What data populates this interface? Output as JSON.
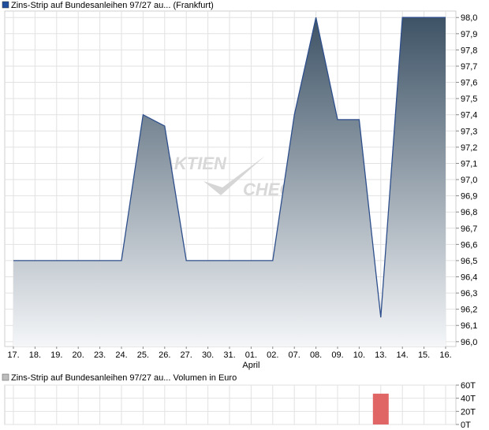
{
  "colors": {
    "price_line": "#2e4f8c",
    "fill_top": "#3e5366",
    "fill_bottom": "#f4f6f8",
    "volume_bar": "#e06666",
    "grid": "#e2e2e2",
    "legend_price_square": "#1f4e9c",
    "legend_volume_square": "#bdbdbd"
  },
  "watermark": {
    "text_left": "AKTIEN",
    "text_right": "CHECK"
  },
  "chart_data": [
    {
      "type": "area",
      "legend": "Zins-Strip auf Bundesanleihen 97/27 au... (Frankfurt)",
      "categories": [
        "17.",
        "18.",
        "19.",
        "20.",
        "23.",
        "24.",
        "25.",
        "26.",
        "27.",
        "30.",
        "31.",
        "01.",
        "02.",
        "07.",
        "08.",
        "09.",
        "10.",
        "13.",
        "14.",
        "15.",
        "16."
      ],
      "month_label": {
        "text": "April",
        "at_category": "01."
      },
      "values": [
        96.5,
        96.5,
        96.5,
        96.5,
        96.5,
        96.5,
        97.4,
        97.33,
        96.5,
        96.5,
        96.5,
        96.5,
        96.5,
        97.4,
        98.0,
        97.37,
        97.37,
        96.15,
        98.0,
        98.0,
        98.0
      ],
      "y_ticks": [
        "98,0",
        "97,9",
        "97,8",
        "97,7",
        "97,6",
        "97,5",
        "97,4",
        "97,3",
        "97,2",
        "97,1",
        "97,0",
        "96,9",
        "96,8",
        "96,7",
        "96,6",
        "96,5",
        "96,4",
        "96,3",
        "96,2",
        "96,1",
        "96,0"
      ],
      "ylim": [
        95.97,
        98.04
      ],
      "grid": true
    },
    {
      "type": "bar",
      "legend": "Zins-Strip auf Bundesanleihen 97/27 au... Volumen in Euro",
      "categories": [
        "17.",
        "18.",
        "19.",
        "20.",
        "23.",
        "24.",
        "25.",
        "26.",
        "27.",
        "30.",
        "31.",
        "01.",
        "02.",
        "07.",
        "08.",
        "09.",
        "10.",
        "13.",
        "14.",
        "15.",
        "16."
      ],
      "values": [
        0,
        0,
        0,
        0,
        0,
        0,
        0,
        0,
        0,
        0,
        0,
        0,
        0,
        0,
        0,
        0,
        0,
        47000,
        0,
        0,
        0
      ],
      "y_ticks": [
        "60T",
        "40T",
        "20T",
        "0T"
      ],
      "ylim": [
        0,
        60000
      ],
      "grid": true
    }
  ]
}
